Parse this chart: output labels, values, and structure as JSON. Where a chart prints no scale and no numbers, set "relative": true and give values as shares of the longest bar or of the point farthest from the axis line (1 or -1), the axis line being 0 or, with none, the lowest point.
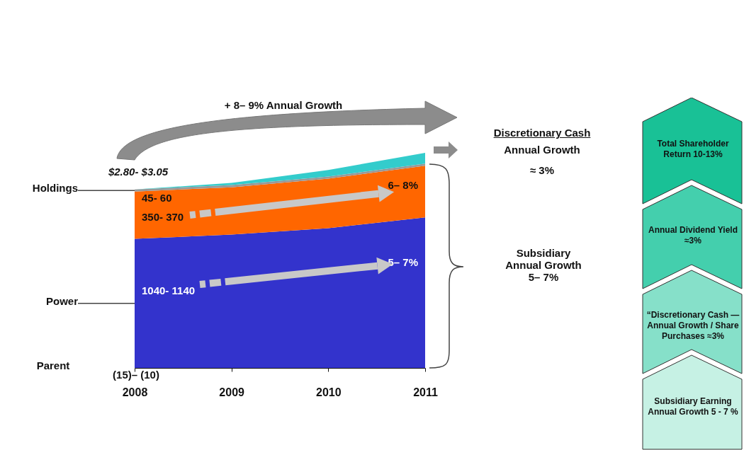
{
  "chart_data": [
    {
      "type": "area",
      "stacked": true,
      "relative": true,
      "legend": false,
      "categories": [
        "2008",
        "2009",
        "2010",
        "2011"
      ],
      "series": [
        {
          "name": "Power",
          "color": "#3333cc",
          "values": [
            0.6,
            0.62,
            0.65,
            0.7
          ]
        },
        {
          "color": "#ff6600",
          "values": [
            0.22,
            0.22,
            0.23,
            0.24
          ]
        },
        {
          "name": "Holdings",
          "color": "#999999",
          "values": [
            0.01,
            0.01,
            0.01,
            0.01
          ]
        },
        {
          "color": "#33cccc",
          "values": [
            0,
            0.01,
            0.03,
            0.05
          ]
        }
      ],
      "annotations": [
        {
          "text": "6– 8%",
          "x": "2011",
          "y": 0.85
        },
        {
          "text": "5– 7%",
          "x": "2011",
          "y": 0.49
        },
        {
          "text": "45- 60",
          "x": "2008",
          "y": 0.79
        },
        {
          "text": "350- 370",
          "x": "2008",
          "y": 0.7
        },
        {
          "text": "1040- 1140",
          "x": "2008",
          "y": 0.36
        },
        "+ 8– 9% Annual Growth",
        "$2.80- $3.05",
        "Discretionary Cash",
        "Annual Growth",
        "≈ 3%",
        "Subsidiary Annual Growth 5– 7%",
        "(15)– (10)",
        "Parent"
      ]
    },
    {
      "type": "other",
      "annotations": [
        "Total Shareholder Return 10-13%",
        "Annual Dividend Yield ≈3%",
        "“Discretionary Cash — Annual Growth / Share Purchases ≈3%",
        "Subsidiary Earning Annual Growth 5 - 7 %"
      ]
    }
  ]
}
